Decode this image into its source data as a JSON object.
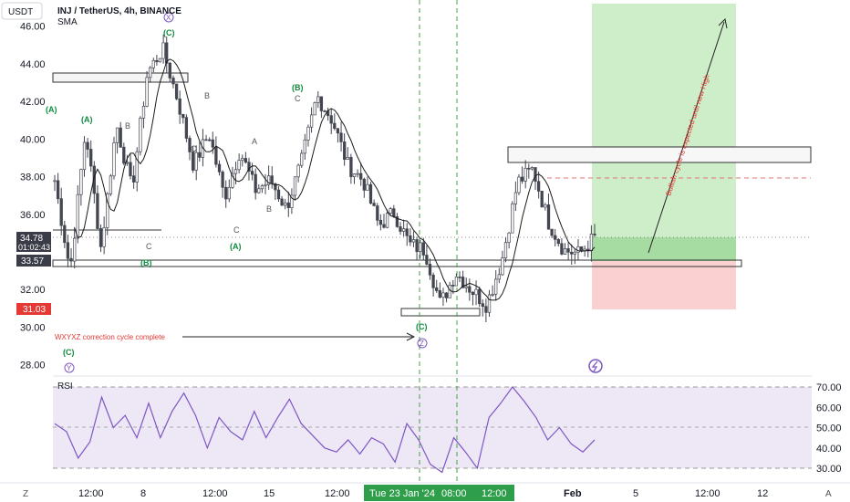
{
  "header": {
    "symbol_line": "INJ / TetherUS, 4h, BINANCE",
    "indicator": "SMA",
    "currency": "USDT"
  },
  "price_axis": {
    "ticks": [
      "46.00",
      "44.00",
      "42.00",
      "40.00",
      "38.00",
      "36.00",
      "32.00",
      "30.00",
      "28.00"
    ],
    "current_price": "34.78",
    "countdown": "01:02:43",
    "level_label": "33.57",
    "stop_label": "31.03"
  },
  "rsi": {
    "label": "RSI",
    "ticks": [
      "70.00",
      "60.00",
      "50.00",
      "40.00",
      "30.00"
    ]
  },
  "time_axis": {
    "left_button": "Z",
    "ticks": [
      "12:00",
      "8",
      "12:00",
      "15",
      "12:00",
      "12:00",
      "Feb",
      "5",
      "12:00",
      "12"
    ],
    "highlight_date": "Tue 23 Jan '24",
    "highlight_time": "08:00",
    "right_button": "A"
  },
  "annotations": {
    "correction_text": "WXYXZ correction cycle complete",
    "bullish_text": "Bullish cycle is expected until new High",
    "wave_labels": [
      "(A)",
      "B",
      "C",
      "(B)",
      "(C)",
      "(A)",
      "B",
      "C",
      "(B)",
      "C",
      "A",
      "B",
      "C",
      "(A)",
      "(C)",
      "X",
      "Y",
      "Z"
    ]
  },
  "colors": {
    "candle": "#434651",
    "sma": "#000000",
    "rsi": "#7e57c2",
    "rsi_band": "#ede7f6",
    "target_zone": "#b9e6b5",
    "stop_zone": "#f9c5c5",
    "highlight": "#26a69a",
    "wave_green": "#0e8a3e",
    "wave_purple": "#7e57c2",
    "annotation_red": "#e53935"
  },
  "chart_data": {
    "type": "candlestick",
    "title": "INJ / TetherUS, 4h, BINANCE",
    "ylabel": "USDT",
    "ylim": [
      27.4,
      47.2
    ],
    "x": [
      "12:00",
      "8",
      "12:00",
      "15",
      "12:00",
      "Tue 23 Jan '24",
      "08:00",
      "12:00",
      "Feb",
      "5",
      "12:00",
      "12"
    ],
    "price_path": [
      37.8,
      33.0,
      40.5,
      34.2,
      40.8,
      37.3,
      43.5,
      44.8,
      42.0,
      38.6,
      40.3,
      36.9,
      39.4,
      37.3,
      37.8,
      36.3,
      38.8,
      42.3,
      41.0,
      38.6,
      37.8,
      35.4,
      36.1,
      34.4,
      34.1,
      31.2,
      32.9,
      32.0,
      31.2,
      33.6,
      37.7,
      38.4,
      35.6,
      34.1,
      33.9,
      34.78
    ],
    "levels": {
      "current": 34.78,
      "support": 33.57,
      "stop": 31.03,
      "resistance": 38.7,
      "target": 46.6
    },
    "rsi": {
      "range": [
        25,
        72
      ],
      "bands": [
        30,
        50,
        70
      ],
      "values": [
        52,
        48,
        35,
        43,
        65,
        50,
        56,
        45,
        62,
        45,
        58,
        67,
        56,
        40,
        55,
        48,
        44,
        58,
        45,
        55,
        64,
        52,
        46,
        40,
        38,
        44,
        37,
        45,
        42,
        33,
        52,
        44,
        32,
        28,
        45,
        38,
        30,
        55,
        62,
        70,
        63,
        55,
        44,
        50,
        42,
        38,
        44
      ]
    },
    "grid": false,
    "legend": "none"
  }
}
